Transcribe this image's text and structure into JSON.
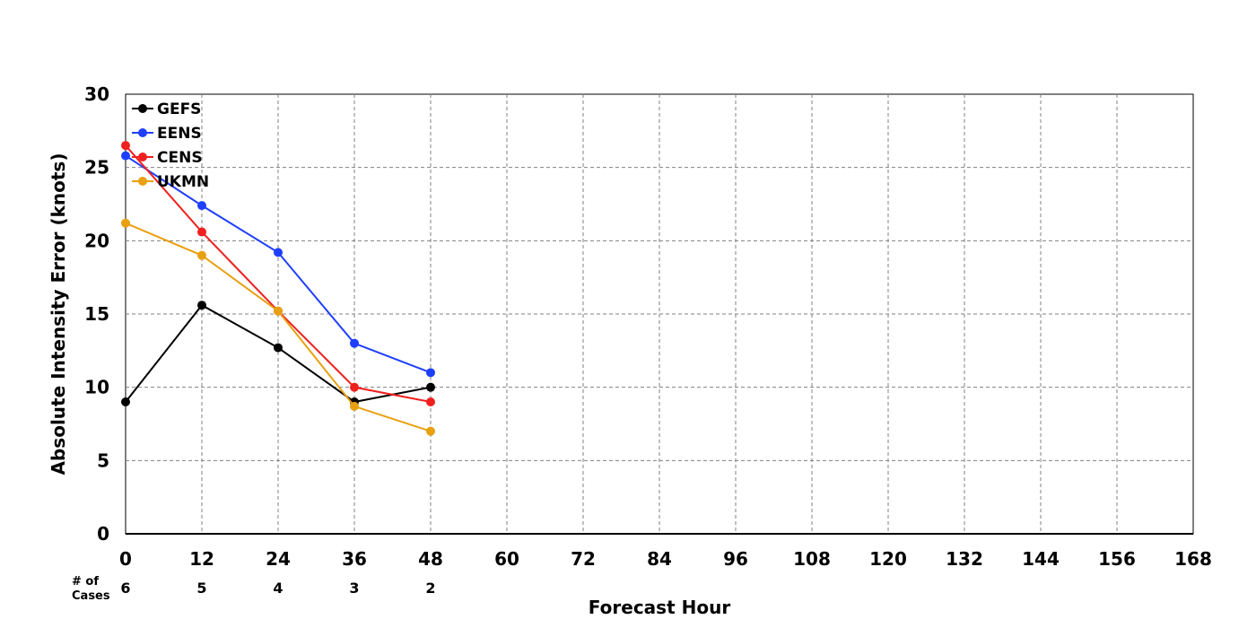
{
  "chart_data": {
    "type": "line",
    "title": "",
    "xlabel": "Forecast Hour",
    "ylabel": "Absolute Intensity Error (knots)",
    "xlim": [
      0,
      168
    ],
    "ylim": [
      0,
      30
    ],
    "x_ticks": [
      0,
      12,
      24,
      36,
      48,
      60,
      72,
      84,
      96,
      108,
      120,
      132,
      144,
      156,
      168
    ],
    "y_ticks": [
      0,
      5,
      10,
      15,
      20,
      25,
      30
    ],
    "grid": true,
    "legend_position": "top-left",
    "x": [
      0,
      12,
      24,
      36,
      48
    ],
    "series": [
      {
        "name": "GEFS",
        "color": "#000000",
        "values": [
          9.0,
          15.6,
          12.7,
          9.0,
          10.0
        ]
      },
      {
        "name": "EENS",
        "color": "#1f3fff",
        "values": [
          25.8,
          22.4,
          19.2,
          13.0,
          11.0
        ]
      },
      {
        "name": "CENS",
        "color": "#f02020",
        "values": [
          26.5,
          20.6,
          15.2,
          10.0,
          9.0
        ]
      },
      {
        "name": "UKMN",
        "color": "#e8a010",
        "values": [
          21.2,
          19.0,
          15.2,
          8.7,
          7.0
        ]
      }
    ],
    "cases": {
      "label_line1": "# of",
      "label_line2": "Cases",
      "values": [
        "6",
        "5",
        "4",
        "3",
        "2"
      ]
    }
  }
}
